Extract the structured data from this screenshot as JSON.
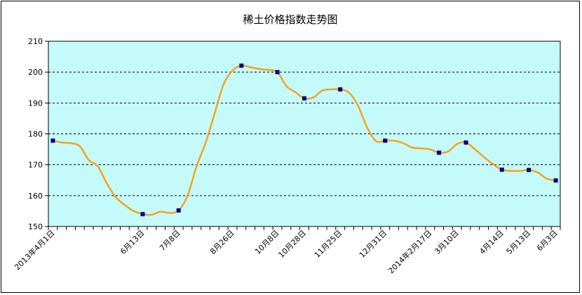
{
  "chart_data": {
    "type": "line",
    "title": "稀土价格指数走势图",
    "xlabel": "",
    "ylabel": "",
    "ylim": [
      150,
      210
    ],
    "yticks": [
      150,
      160,
      170,
      180,
      190,
      200,
      210
    ],
    "grid": "horizontal-dashed",
    "colors": {
      "plot_background": "#c4fafa",
      "line": "#f5a21b",
      "marker": "#000080",
      "grid": "#000000"
    },
    "n_points": 57,
    "x_tick_labels": [
      {
        "index": 0,
        "label": "2013年4月1日"
      },
      {
        "index": 10,
        "label": "6月13日"
      },
      {
        "index": 14,
        "label": "7月8日"
      },
      {
        "index": 20,
        "label": "8月26日"
      },
      {
        "index": 25,
        "label": "10月8日"
      },
      {
        "index": 28,
        "label": "10月28日"
      },
      {
        "index": 32,
        "label": "11月25日"
      },
      {
        "index": 37,
        "label": "12月31日"
      },
      {
        "index": 42,
        "label": "2014年2月17日"
      },
      {
        "index": 45,
        "label": "3月10日"
      },
      {
        "index": 50,
        "label": "4月14日"
      },
      {
        "index": 53,
        "label": "5月13日"
      },
      {
        "index": 56,
        "label": "6月3日"
      }
    ],
    "series": [
      {
        "values": [
          177.8,
          177.2,
          177.0,
          176.0,
          171.5,
          169.5,
          164.0,
          159.5,
          157.0,
          155.0,
          154.0,
          153.8,
          154.8,
          154.4,
          155.2,
          160.0,
          169.5,
          177.0,
          186.5,
          196.0,
          200.5,
          202.1,
          201.6,
          201.0,
          200.7,
          200.0,
          195.5,
          193.5,
          191.5,
          191.8,
          194.0,
          194.4,
          194.4,
          193.3,
          189.0,
          182.0,
          177.6,
          177.8,
          177.8,
          177.0,
          175.6,
          175.3,
          175.0,
          173.9,
          174.3,
          176.7,
          177.2,
          175.0,
          172.5,
          170.2,
          168.4,
          168.0,
          168.0,
          168.3,
          167.5,
          165.5,
          164.9
        ],
        "markers": [
          0,
          10,
          14,
          21,
          25,
          28,
          32,
          37,
          43,
          46,
          50,
          53,
          56
        ]
      }
    ]
  }
}
